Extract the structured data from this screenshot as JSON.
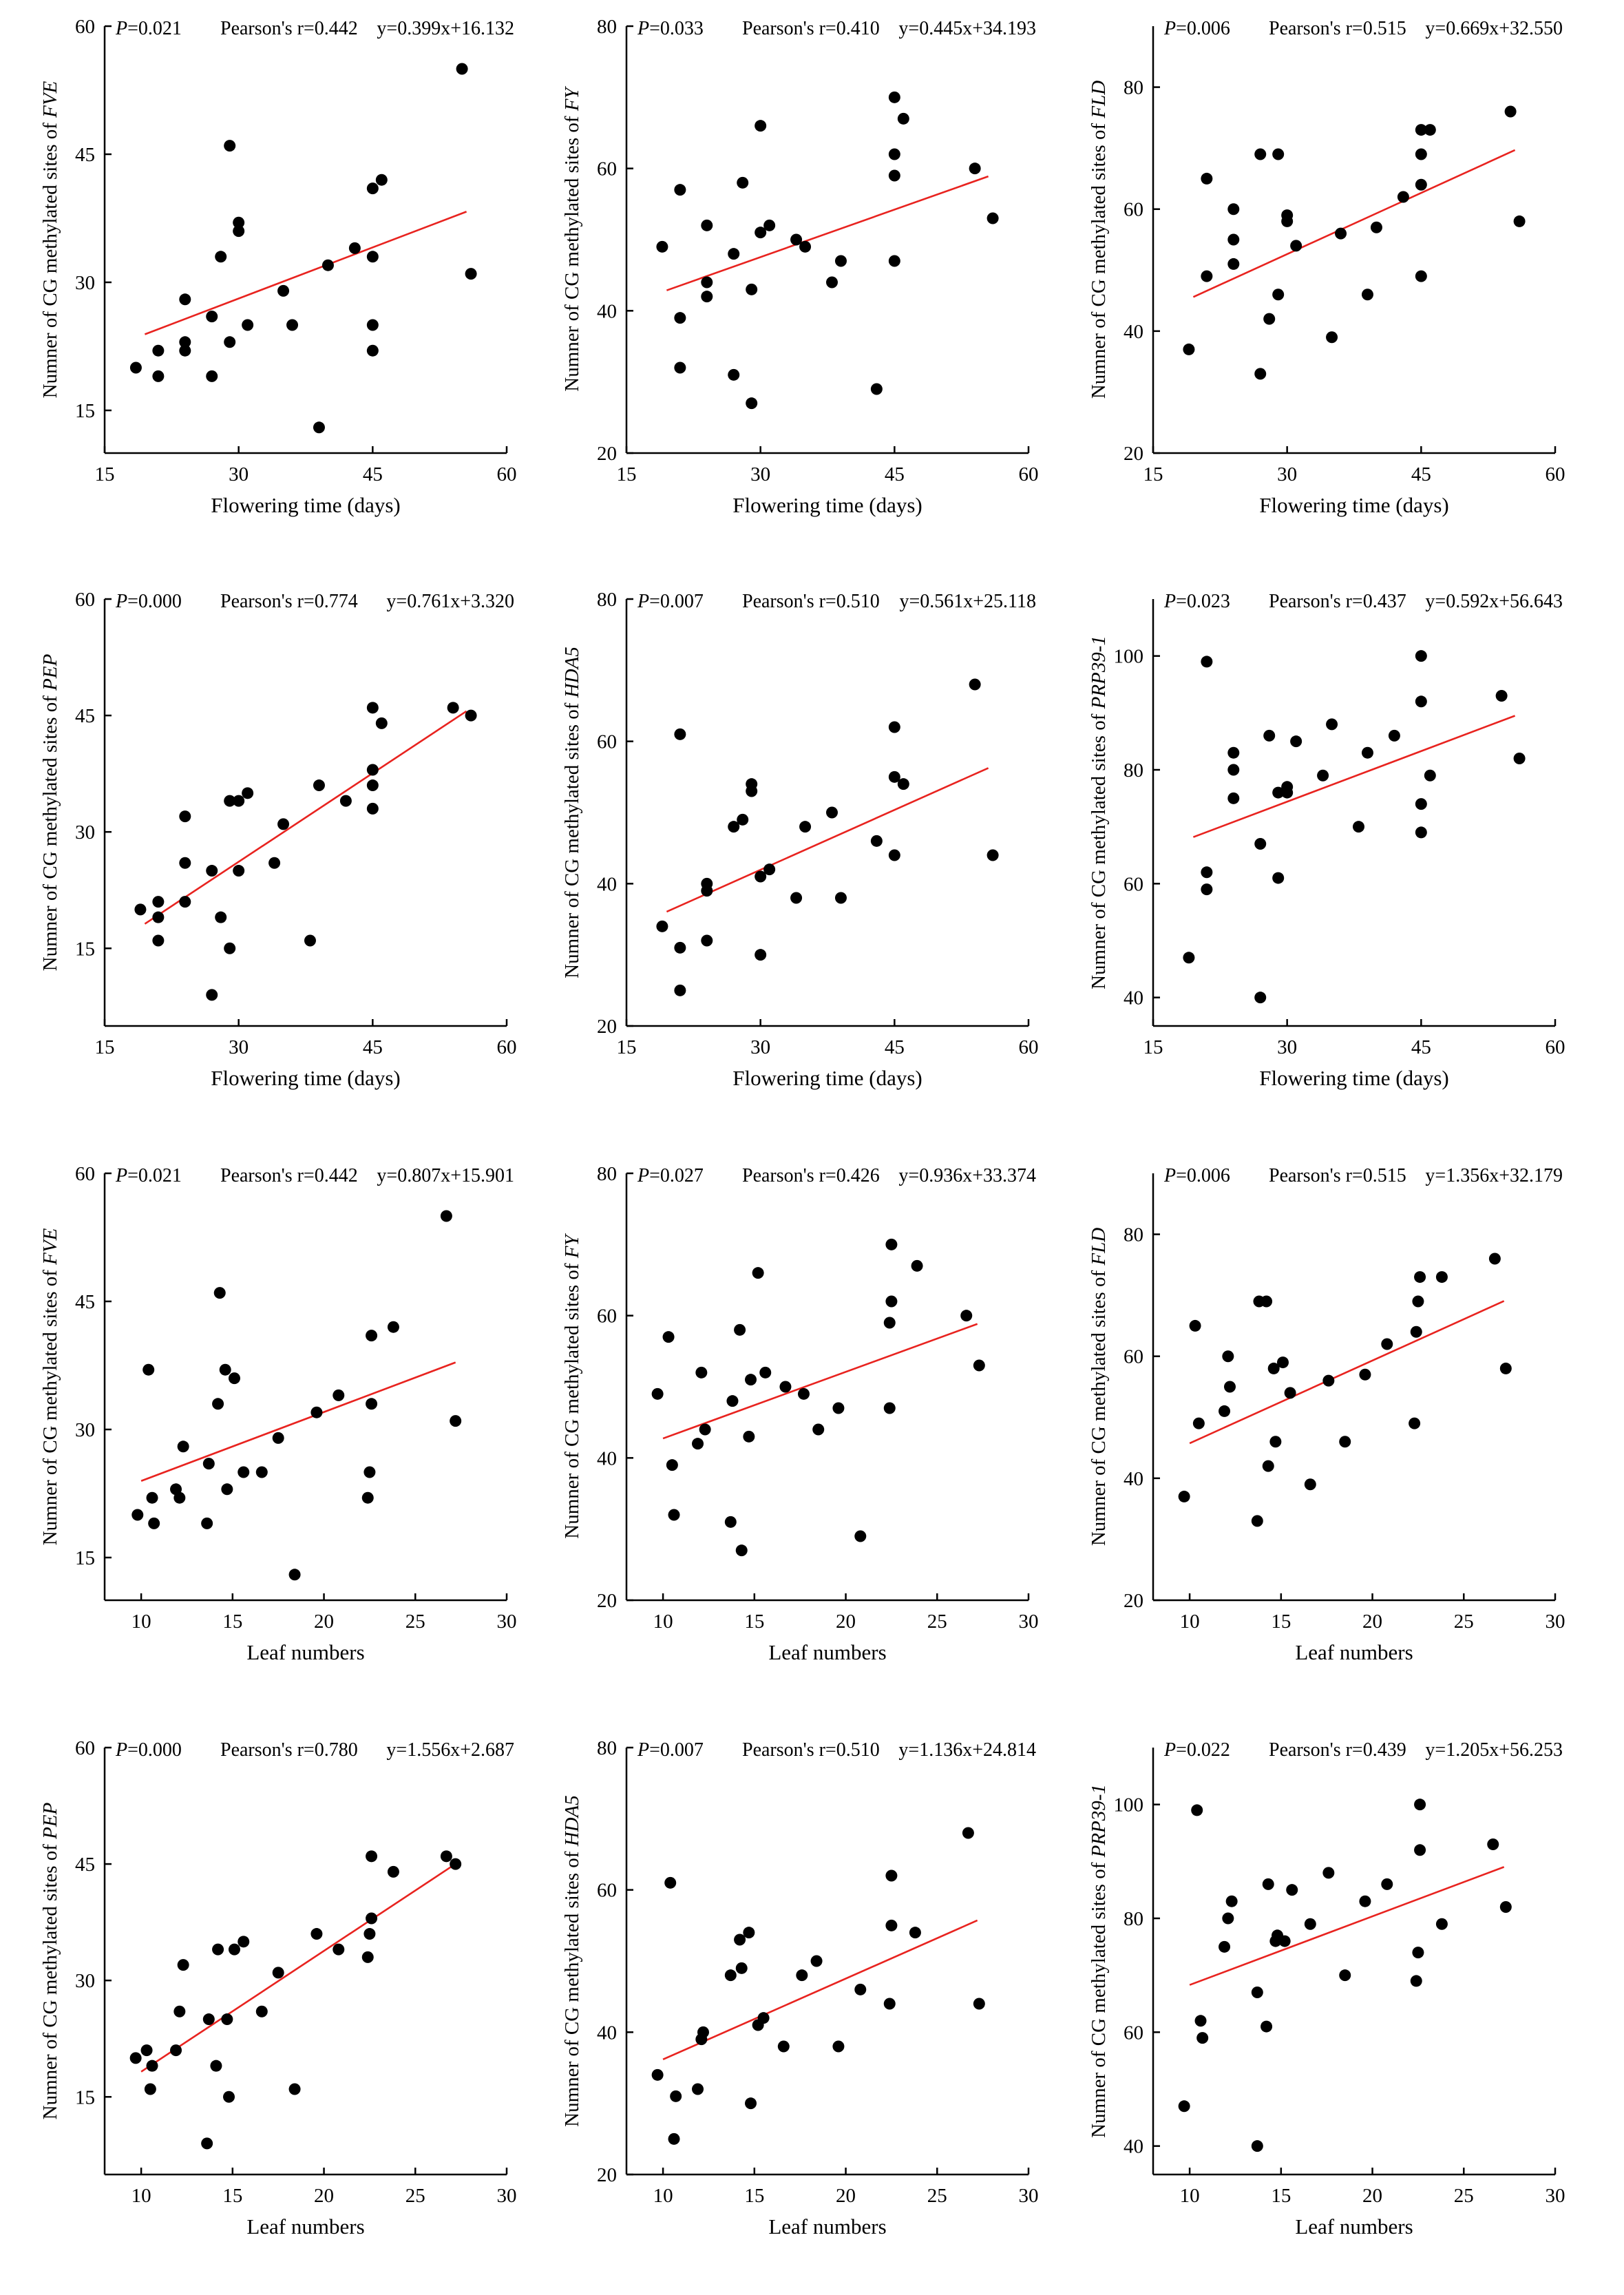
{
  "chart_data": [
    {
      "type": "scatter",
      "xlabel": "Flowering time (days)",
      "ylabel_prefix": "Numner of CG methylated sites of ",
      "gene": "FVE",
      "xlim": [
        15,
        60
      ],
      "xticks": [
        15,
        30,
        45,
        60
      ],
      "ylim": [
        10,
        60
      ],
      "yticks": [
        15,
        30,
        45,
        60
      ],
      "stats": {
        "p_label": "P",
        "p_value": "=0.021",
        "r": "Pearson's r=0.442",
        "equation": "y=0.399x+16.132"
      },
      "fit": {
        "slope": 0.399,
        "intercept": 16.132,
        "x_range": [
          19.5,
          55.5
        ]
      },
      "x": [
        18.5,
        21,
        21,
        24,
        24,
        24,
        27,
        27,
        28,
        29,
        29,
        30,
        30,
        31,
        35,
        36,
        39,
        40,
        43,
        45,
        45,
        45,
        45,
        46,
        55,
        56
      ],
      "y": [
        20,
        19,
        22,
        22,
        23,
        28,
        26,
        19,
        33,
        23,
        46,
        37,
        36,
        25,
        29,
        25,
        13,
        32,
        34,
        22,
        25,
        33,
        41,
        42,
        55,
        31
      ]
    },
    {
      "type": "scatter",
      "xlabel": "Flowering time (days)",
      "ylabel_prefix": "Numner of CG methylated sites of ",
      "gene": "FY",
      "xlim": [
        15,
        60
      ],
      "xticks": [
        15,
        30,
        45,
        60
      ],
      "ylim": [
        20,
        80
      ],
      "yticks": [
        20,
        40,
        60,
        80
      ],
      "stats": {
        "p_label": "P",
        "p_value": "=0.033",
        "r": "Pearson's r=0.410",
        "equation": "y=0.445x+34.193"
      },
      "fit": {
        "slope": 0.445,
        "intercept": 34.193,
        "x_range": [
          19.5,
          55.5
        ]
      },
      "x": [
        19,
        21,
        21,
        21,
        24,
        24,
        24,
        27,
        27,
        28,
        29,
        29,
        30,
        30,
        31,
        34,
        35,
        38,
        39,
        43,
        45,
        45,
        45,
        45,
        46,
        54,
        56
      ],
      "y": [
        49,
        32,
        39,
        57,
        42,
        44,
        52,
        31,
        48,
        58,
        27,
        43,
        51,
        66,
        52,
        50,
        49,
        44,
        47,
        29,
        47,
        59,
        62,
        70,
        67,
        60,
        53
      ]
    },
    {
      "type": "scatter",
      "xlabel": "Flowering time (days)",
      "ylabel_prefix": "Numner of CG methylated sites of ",
      "gene": "FLD",
      "xlim": [
        15,
        60
      ],
      "xticks": [
        15,
        30,
        45,
        60
      ],
      "ylim": [
        20,
        90
      ],
      "yticks": [
        20,
        40,
        60,
        80
      ],
      "stats": {
        "p_label": "P",
        "p_value": "=0.006",
        "r": "Pearson's r=0.515",
        "equation": "y=0.669x+32.550"
      },
      "fit": {
        "slope": 0.669,
        "intercept": 32.55,
        "x_range": [
          19.5,
          55.5
        ]
      },
      "x": [
        19,
        21,
        21,
        24,
        24,
        24,
        27,
        27,
        28,
        29,
        29,
        30,
        30,
        31,
        35,
        36,
        39,
        40,
        43,
        45,
        45,
        45,
        45,
        46,
        55,
        56
      ],
      "y": [
        37,
        49,
        65,
        51,
        55,
        60,
        33,
        69,
        42,
        46,
        69,
        58,
        59,
        54,
        39,
        56,
        46,
        57,
        62,
        49,
        64,
        69,
        73,
        73,
        76,
        58
      ]
    },
    {
      "type": "scatter",
      "xlabel": "Flowering time (days)",
      "ylabel_prefix": "Numner of CG methylated sites of ",
      "gene": "PEP",
      "xlim": [
        15,
        60
      ],
      "xticks": [
        15,
        30,
        45,
        60
      ],
      "ylim": [
        5,
        60
      ],
      "yticks": [
        15,
        30,
        45,
        60
      ],
      "stats": {
        "p_label": "P",
        "p_value": "=0.000",
        "r": "Pearson's r=0.774",
        "equation": "y=0.761x+3.320"
      },
      "fit": {
        "slope": 0.761,
        "intercept": 3.32,
        "x_range": [
          19.5,
          55.5
        ]
      },
      "x": [
        19,
        21,
        21,
        21,
        24,
        24,
        24,
        27,
        27,
        28,
        29,
        29,
        30,
        30,
        31,
        34,
        35,
        38,
        39,
        42,
        45,
        45,
        45,
        45,
        46,
        54,
        56
      ],
      "y": [
        20,
        16,
        19,
        21,
        21,
        26,
        32,
        9,
        25,
        19,
        15,
        34,
        25,
        34,
        35,
        26,
        31,
        16,
        36,
        34,
        33,
        36,
        38,
        46,
        44,
        46,
        45
      ]
    },
    {
      "type": "scatter",
      "xlabel": "Flowering time (days)",
      "ylabel_prefix": "Numner of CG methylated sites of ",
      "gene": "HDA5",
      "xlim": [
        15,
        60
      ],
      "xticks": [
        15,
        30,
        45,
        60
      ],
      "ylim": [
        20,
        80
      ],
      "yticks": [
        20,
        40,
        60,
        80
      ],
      "stats": {
        "p_label": "P",
        "p_value": "=0.007",
        "r": "Pearson's r=0.510",
        "equation": "y=0.561x+25.118"
      },
      "fit": {
        "slope": 0.561,
        "intercept": 25.118,
        "x_range": [
          19.5,
          55.5
        ]
      },
      "x": [
        19,
        21,
        21,
        21,
        24,
        24,
        24,
        27,
        28,
        29,
        29,
        30,
        30,
        31,
        34,
        35,
        38,
        39,
        43,
        45,
        45,
        45,
        46,
        54,
        56
      ],
      "y": [
        34,
        25,
        31,
        61,
        32,
        39,
        40,
        48,
        49,
        54,
        53,
        30,
        41,
        42,
        38,
        48,
        50,
        38,
        46,
        44,
        55,
        62,
        54,
        68,
        44
      ]
    },
    {
      "type": "scatter",
      "xlabel": "Flowering time (days)",
      "ylabel_prefix": "Numner of CG methylated sites of ",
      "gene": "PRP39-1",
      "xlim": [
        15,
        60
      ],
      "xticks": [
        15,
        30,
        45,
        60
      ],
      "ylim": [
        35,
        110
      ],
      "yticks": [
        40,
        60,
        80,
        100
      ],
      "stats": {
        "p_label": "P",
        "p_value": "=0.023",
        "r": "Pearson's r=0.437",
        "equation": "y=0.592x+56.643"
      },
      "fit": {
        "slope": 0.592,
        "intercept": 56.643,
        "x_range": [
          19.5,
          55.5
        ]
      },
      "x": [
        19,
        21,
        21,
        21,
        24,
        24,
        24,
        27,
        27,
        28,
        29,
        29,
        30,
        30,
        31,
        34,
        35,
        38,
        39,
        42,
        45,
        45,
        45,
        45,
        46,
        54,
        56
      ],
      "y": [
        47,
        59,
        62,
        99,
        75,
        80,
        83,
        40,
        67,
        86,
        76,
        61,
        76,
        77,
        85,
        79,
        88,
        70,
        83,
        86,
        69,
        74,
        92,
        100,
        79,
        93,
        82
      ]
    },
    {
      "type": "scatter",
      "xlabel": "Leaf numbers",
      "ylabel_prefix": "Numner of CG methylated sites of ",
      "gene": "FVE",
      "xlim": [
        8,
        30
      ],
      "xticks": [
        10,
        15,
        20,
        25,
        30
      ],
      "ylim": [
        10,
        60
      ],
      "yticks": [
        15,
        30,
        45,
        60
      ],
      "stats": {
        "p_label": "P",
        "p_value": "=0.021",
        "r": "Pearson's r=0.442",
        "equation": "y=0.807x+15.901"
      },
      "fit": {
        "slope": 0.807,
        "intercept": 15.901,
        "x_range": [
          10,
          27.2
        ]
      },
      "x": [
        9.8,
        10.4,
        10.6,
        10.7,
        11.9,
        12.1,
        12.3,
        13.6,
        13.7,
        14.2,
        14.3,
        14.6,
        14.7,
        15.1,
        15.6,
        16.6,
        17.5,
        18.4,
        19.6,
        20.8,
        22.4,
        22.5,
        22.6,
        22.6,
        23.8,
        26.7,
        27.2
      ],
      "y": [
        20,
        37,
        22,
        19,
        23,
        22,
        28,
        19,
        26,
        33,
        46,
        37,
        23,
        36,
        25,
        25,
        29,
        13,
        32,
        34,
        22,
        25,
        33,
        41,
        42,
        55,
        31
      ]
    },
    {
      "type": "scatter",
      "xlabel": "Leaf numbers",
      "ylabel_prefix": "Numner of CG methylated sites of ",
      "gene": "FY",
      "xlim": [
        8,
        30
      ],
      "xticks": [
        10,
        15,
        20,
        25,
        30
      ],
      "ylim": [
        20,
        80
      ],
      "yticks": [
        20,
        40,
        60,
        80
      ],
      "stats": {
        "p_label": "P",
        "p_value": "=0.027",
        "r": "Pearson's r=0.426",
        "equation": "y=0.936x+33.374"
      },
      "fit": {
        "slope": 0.936,
        "intercept": 33.374,
        "x_range": [
          10,
          27.2
        ]
      },
      "x": [
        9.7,
        10.3,
        10.5,
        10.6,
        11.9,
        12.1,
        12.3,
        13.7,
        13.8,
        14.2,
        14.3,
        14.7,
        14.8,
        15.2,
        15.6,
        16.7,
        17.7,
        18.5,
        19.6,
        20.8,
        22.4,
        22.4,
        22.5,
        22.5,
        23.9,
        26.6,
        27.3
      ],
      "y": [
        49,
        57,
        39,
        32,
        42,
        52,
        44,
        31,
        48,
        58,
        27,
        43,
        51,
        66,
        52,
        50,
        49,
        44,
        47,
        29,
        47,
        59,
        62,
        70,
        67,
        60,
        53
      ]
    },
    {
      "type": "scatter",
      "xlabel": "Leaf numbers",
      "ylabel_prefix": "Numner of CG methylated sites of ",
      "gene": "FLD",
      "xlim": [
        8,
        30
      ],
      "xticks": [
        10,
        15,
        20,
        25,
        30
      ],
      "ylim": [
        20,
        90
      ],
      "yticks": [
        20,
        40,
        60,
        80
      ],
      "stats": {
        "p_label": "P",
        "p_value": "=0.006",
        "r": "Pearson's r=0.515",
        "equation": "y=1.356x+32.179"
      },
      "fit": {
        "slope": 1.356,
        "intercept": 32.179,
        "x_range": [
          10,
          27.2
        ]
      },
      "x": [
        9.7,
        10.3,
        10.5,
        11.9,
        12.1,
        12.2,
        13.7,
        13.8,
        14.2,
        14.3,
        14.6,
        14.7,
        15.1,
        15.5,
        16.6,
        17.6,
        18.5,
        19.6,
        20.8,
        22.3,
        22.4,
        22.5,
        22.6,
        23.8,
        26.7,
        27.3
      ],
      "y": [
        37,
        65,
        49,
        51,
        60,
        55,
        33,
        69,
        69,
        42,
        58,
        46,
        59,
        54,
        39,
        56,
        46,
        57,
        62,
        49,
        64,
        69,
        73,
        73,
        76,
        58
      ]
    },
    {
      "type": "scatter",
      "xlabel": "Leaf numbers",
      "ylabel_prefix": "Numner of CG methylated sites of ",
      "gene": "PEP",
      "xlim": [
        8,
        30
      ],
      "xticks": [
        10,
        15,
        20,
        25,
        30
      ],
      "ylim": [
        5,
        60
      ],
      "yticks": [
        15,
        30,
        45,
        60
      ],
      "stats": {
        "p_label": "P",
        "p_value": "=0.000",
        "r": "Pearson's r=0.780",
        "equation": "y=1.556x+2.687"
      },
      "fit": {
        "slope": 1.556,
        "intercept": 2.687,
        "x_range": [
          10,
          27.2
        ]
      },
      "x": [
        9.7,
        10.3,
        10.5,
        10.6,
        11.9,
        12.1,
        12.3,
        13.6,
        13.7,
        14.1,
        14.2,
        14.7,
        14.8,
        15.1,
        15.6,
        16.6,
        17.5,
        18.4,
        19.6,
        20.8,
        22.4,
        22.5,
        22.6,
        22.6,
        23.8,
        26.7,
        27.2
      ],
      "y": [
        20,
        21,
        16,
        19,
        21,
        26,
        32,
        9,
        25,
        19,
        34,
        25,
        15,
        34,
        35,
        26,
        31,
        16,
        36,
        34,
        33,
        36,
        38,
        46,
        44,
        46,
        45
      ]
    },
    {
      "type": "scatter",
      "xlabel": "Leaf numbers",
      "ylabel_prefix": "Numner of CG methylated sites of ",
      "gene": "HDA5",
      "xlim": [
        8,
        30
      ],
      "xticks": [
        10,
        15,
        20,
        25,
        30
      ],
      "ylim": [
        20,
        80
      ],
      "yticks": [
        20,
        40,
        60,
        80
      ],
      "stats": {
        "p_label": "P",
        "p_value": "=0.007",
        "r": "Pearson's r=0.510",
        "equation": "y=1.136x+24.814"
      },
      "fit": {
        "slope": 1.136,
        "intercept": 24.814,
        "x_range": [
          10,
          27.2
        ]
      },
      "x": [
        9.7,
        10.4,
        10.6,
        10.7,
        11.9,
        12.1,
        12.2,
        13.7,
        14.2,
        14.3,
        14.7,
        14.8,
        15.2,
        15.5,
        16.6,
        17.6,
        18.4,
        19.6,
        20.8,
        22.4,
        22.5,
        22.5,
        23.8,
        26.7,
        27.3
      ],
      "y": [
        34,
        61,
        25,
        31,
        32,
        39,
        40,
        48,
        53,
        49,
        54,
        30,
        41,
        42,
        38,
        48,
        50,
        38,
        46,
        44,
        55,
        62,
        54,
        68,
        44
      ]
    },
    {
      "type": "scatter",
      "xlabel": "Leaf numbers",
      "ylabel_prefix": "Numner of CG methylated sites of ",
      "gene": "PRP39-1",
      "xlim": [
        8,
        30
      ],
      "xticks": [
        10,
        15,
        20,
        25,
        30
      ],
      "ylim": [
        35,
        110
      ],
      "yticks": [
        40,
        60,
        80,
        100
      ],
      "stats": {
        "p_label": "P",
        "p_value": "=0.022",
        "r": "Pearson's r=0.439",
        "equation": "y=1.205x+56.253"
      },
      "fit": {
        "slope": 1.205,
        "intercept": 56.253,
        "x_range": [
          10,
          27.2
        ]
      },
      "x": [
        9.7,
        10.4,
        10.6,
        10.7,
        11.9,
        12.1,
        12.3,
        13.7,
        13.7,
        14.2,
        14.3,
        14.7,
        14.8,
        15.2,
        15.6,
        16.6,
        17.6,
        18.5,
        19.6,
        20.8,
        22.4,
        22.5,
        22.6,
        22.6,
        23.8,
        26.6,
        27.3
      ],
      "y": [
        47,
        99,
        62,
        59,
        75,
        80,
        83,
        40,
        67,
        61,
        86,
        76,
        77,
        76,
        85,
        79,
        88,
        70,
        83,
        86,
        69,
        74,
        92,
        100,
        79,
        93,
        82
      ]
    }
  ]
}
